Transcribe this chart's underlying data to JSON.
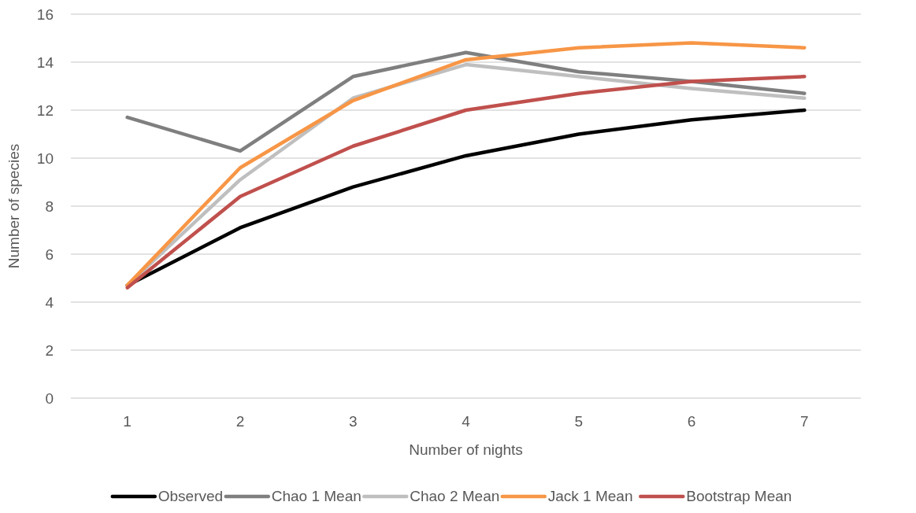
{
  "chart_data": {
    "type": "line",
    "xlabel": "Number of nights",
    "ylabel": "Number of species",
    "categories": [
      "1",
      "2",
      "3",
      "4",
      "5",
      "6",
      "7"
    ],
    "series": [
      {
        "name": "Observed",
        "color": "#000000",
        "values": [
          4.7,
          7.1,
          8.8,
          10.1,
          11.0,
          11.6,
          12.0
        ]
      },
      {
        "name": "Chao 1 Mean",
        "color": "#7f7f7f",
        "values": [
          11.7,
          10.3,
          13.4,
          14.4,
          13.6,
          13.2,
          12.7
        ]
      },
      {
        "name": "Chao 2 Mean",
        "color": "#bfbfbf",
        "values": [
          4.7,
          9.1,
          12.5,
          13.9,
          13.4,
          12.9,
          12.5
        ]
      },
      {
        "name": "Jack 1 Mean",
        "color": "#f79646",
        "values": [
          4.7,
          9.6,
          12.4,
          14.1,
          14.6,
          14.8,
          14.6
        ]
      },
      {
        "name": "Bootstrap Mean",
        "color": "#c0504d",
        "values": [
          4.6,
          8.4,
          10.5,
          12.0,
          12.7,
          13.2,
          13.4
        ]
      }
    ],
    "ylim": [
      0,
      16
    ],
    "yticks": [
      0,
      2,
      4,
      6,
      8,
      10,
      12,
      14,
      16
    ],
    "grid": "y",
    "legend": "bottom",
    "marker": "none",
    "line_style": "solid"
  }
}
